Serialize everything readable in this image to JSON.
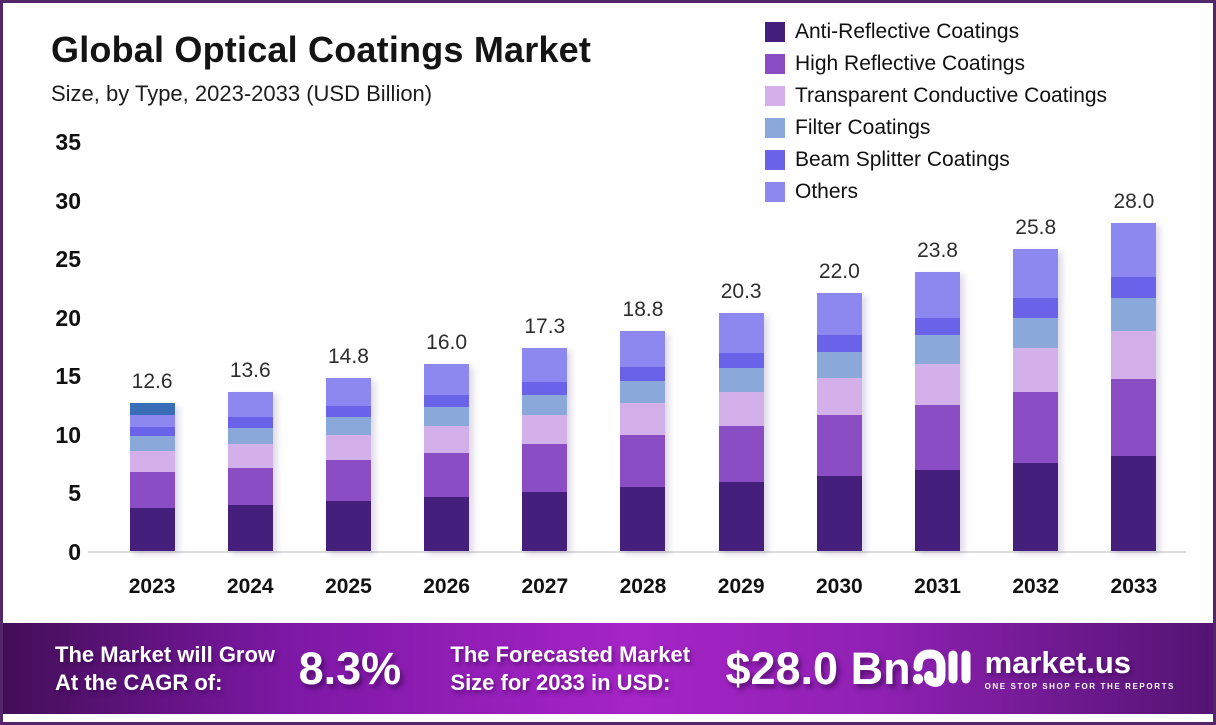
{
  "chart_data": {
    "type": "bar",
    "stacked": true,
    "title": "Global Optical Coatings Market",
    "subtitle": "Size, by Type, 2023-2033 (USD Billion)",
    "xlabel": "",
    "ylabel": "USD Billion",
    "ylim": [
      0,
      35
    ],
    "yticks": [
      0,
      5,
      10,
      15,
      20,
      25,
      30,
      35
    ],
    "grid": false,
    "legend_position": "top-right",
    "categories": [
      "2023",
      "2024",
      "2025",
      "2026",
      "2027",
      "2028",
      "2029",
      "2030",
      "2031",
      "2032",
      "2033"
    ],
    "totals": [
      12.6,
      13.6,
      14.8,
      16.0,
      17.3,
      18.8,
      20.3,
      22.0,
      23.8,
      25.8,
      28.0
    ],
    "value_labels": [
      "12.6",
      "13.6",
      "14.8",
      "16.0",
      "17.3",
      "18.8",
      "20.3",
      "22.0",
      "23.8",
      "25.8",
      "28.0"
    ],
    "series": [
      {
        "name": "Anti-Reflective Coatings",
        "color": "#44207c",
        "values": [
          3.7,
          3.9,
          4.3,
          4.6,
          5.0,
          5.5,
          5.9,
          6.4,
          6.9,
          7.5,
          8.1
        ]
      },
      {
        "name": "High Reflective Coatings",
        "color": "#8a4dc4",
        "values": [
          3.0,
          3.2,
          3.5,
          3.8,
          4.1,
          4.4,
          4.8,
          5.2,
          5.6,
          6.1,
          6.6
        ]
      },
      {
        "name": "Transparent Conductive Coatings",
        "color": "#d4b0ea",
        "values": [
          1.8,
          2.0,
          2.1,
          2.3,
          2.5,
          2.7,
          2.9,
          3.2,
          3.5,
          3.7,
          4.1
        ]
      },
      {
        "name": "Filter Coatings",
        "color": "#8ba8da",
        "values": [
          1.3,
          1.4,
          1.5,
          1.6,
          1.7,
          1.9,
          2.0,
          2.2,
          2.4,
          2.6,
          2.8
        ]
      },
      {
        "name": "Beam Splitter Coatings",
        "color": "#6a62e8",
        "values": [
          0.8,
          0.9,
          1.0,
          1.0,
          1.1,
          1.2,
          1.3,
          1.4,
          1.5,
          1.7,
          1.8
        ]
      },
      {
        "name": "Others",
        "color": "#8d87f0",
        "values": [
          2.0,
          2.2,
          2.4,
          2.7,
          2.9,
          3.1,
          3.4,
          3.6,
          3.9,
          4.2,
          4.6
        ]
      }
    ],
    "highlight_2023_cap": {
      "category": "2023",
      "value": 1.0,
      "color": "#3a6db8"
    }
  },
  "footer": {
    "cagr_label": "The Market will Grow\nAt the CAGR of:",
    "cagr_value": "8.3%",
    "forecast_label": "The Forecasted Market\nSize for 2033 in USD:",
    "forecast_value": "$28.0 Bn",
    "brand": "market.us",
    "brand_tagline": "ONE STOP SHOP FOR THE REPORTS"
  }
}
